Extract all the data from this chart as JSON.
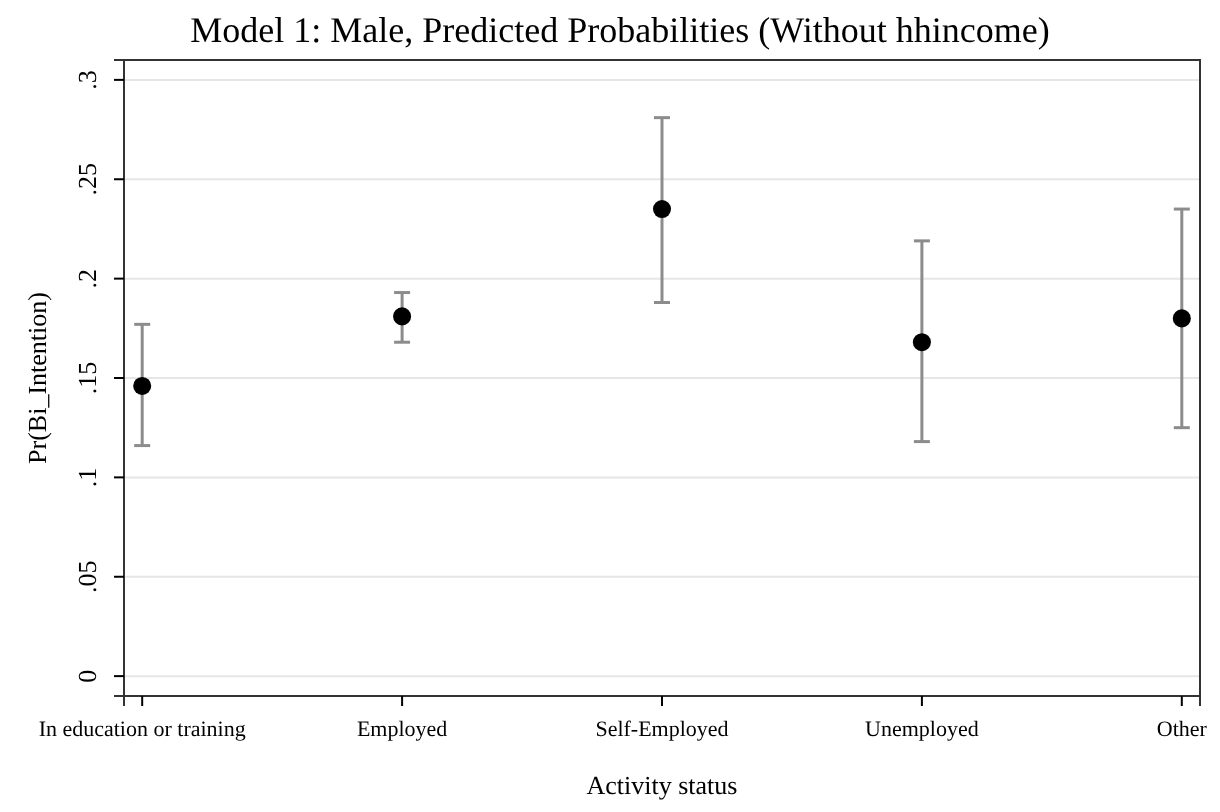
{
  "chart_data": {
    "type": "scatter",
    "title": "Model 1: Male, Predicted Probabilities (Without hhincome)",
    "xlabel": "Activity status",
    "ylabel": "Pr(Bi_Intention)",
    "categories": [
      "In education or training",
      "Employed",
      "Self-Employed",
      "Unemployed",
      "Other"
    ],
    "values": [
      0.146,
      0.181,
      0.235,
      0.168,
      0.18
    ],
    "errors": [
      [
        0.116,
        0.177
      ],
      [
        0.168,
        0.193
      ],
      [
        0.188,
        0.281
      ],
      [
        0.118,
        0.219
      ],
      [
        0.125,
        0.235
      ]
    ],
    "color": "#000000",
    "marker": "circle",
    "grid": "y",
    "ylim": [
      -0.01,
      0.31
    ],
    "yticks": [
      0,
      {
        "value": 0.05,
        "label": ".05"
      },
      {
        "value": 0.1,
        "label": ".1"
      },
      {
        "value": 0.15,
        "label": ".15"
      },
      {
        "value": 0.2,
        "label": ".2"
      },
      {
        "value": 0.25,
        "label": ".25"
      },
      {
        "value": 0.3,
        "label": ".3"
      }
    ]
  }
}
